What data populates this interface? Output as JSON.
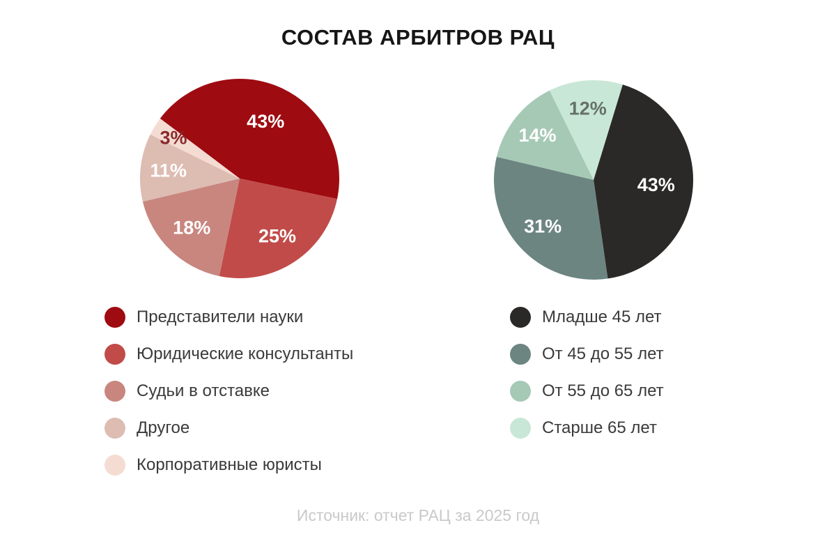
{
  "page": {
    "title": "СОСТАВ АРБИТРОВ РАЦ",
    "source": "Источник: отчет РАЦ за 2025 год",
    "background_color": "#ffffff",
    "title_color": "#161616",
    "source_color": "#c9c9c9"
  },
  "chart_data": [
    {
      "type": "pie",
      "name": "arbitrator-background",
      "start_angle_deg": 307,
      "direction": "clockwise",
      "legend_position": "below-left",
      "slices": [
        {
          "label": "Представители науки",
          "value": 43,
          "display": "43%",
          "color": "#9e0b10",
          "label_color": "#ffffff"
        },
        {
          "label": "Юридические консультанты",
          "value": 25,
          "display": "25%",
          "color": "#c14b49",
          "label_color": "#ffffff"
        },
        {
          "label": "Судьи в отставке",
          "value": 18,
          "display": "18%",
          "color": "#c8867f",
          "label_color": "#ffffff"
        },
        {
          "label": "Другое",
          "value": 11,
          "display": "11%",
          "color": "#ddbcb2",
          "label_color": "#ffffff"
        },
        {
          "label": "Корпоративные юристы",
          "value": 3,
          "display": "3%",
          "color": "#f5dcd3",
          "label_color": "#8a2a2c"
        }
      ]
    },
    {
      "type": "pie",
      "name": "arbitrator-age",
      "start_angle_deg": 17,
      "direction": "clockwise",
      "legend_position": "below-right",
      "slices": [
        {
          "label": "Младше 45 лет",
          "value": 43,
          "display": "43%",
          "color": "#2b2927",
          "label_color": "#ffffff"
        },
        {
          "label": "От 45 до 55 лет",
          "value": 31,
          "display": "31%",
          "color": "#6c8581",
          "label_color": "#ffffff"
        },
        {
          "label": "От 55 до 65 лет",
          "value": 14,
          "display": "14%",
          "color": "#a6c9b6",
          "label_color": "#ffffff"
        },
        {
          "label": "Старше 65 лет",
          "value": 12,
          "display": "12%",
          "color": "#c9e7d6",
          "label_color": "#657169"
        }
      ]
    }
  ]
}
